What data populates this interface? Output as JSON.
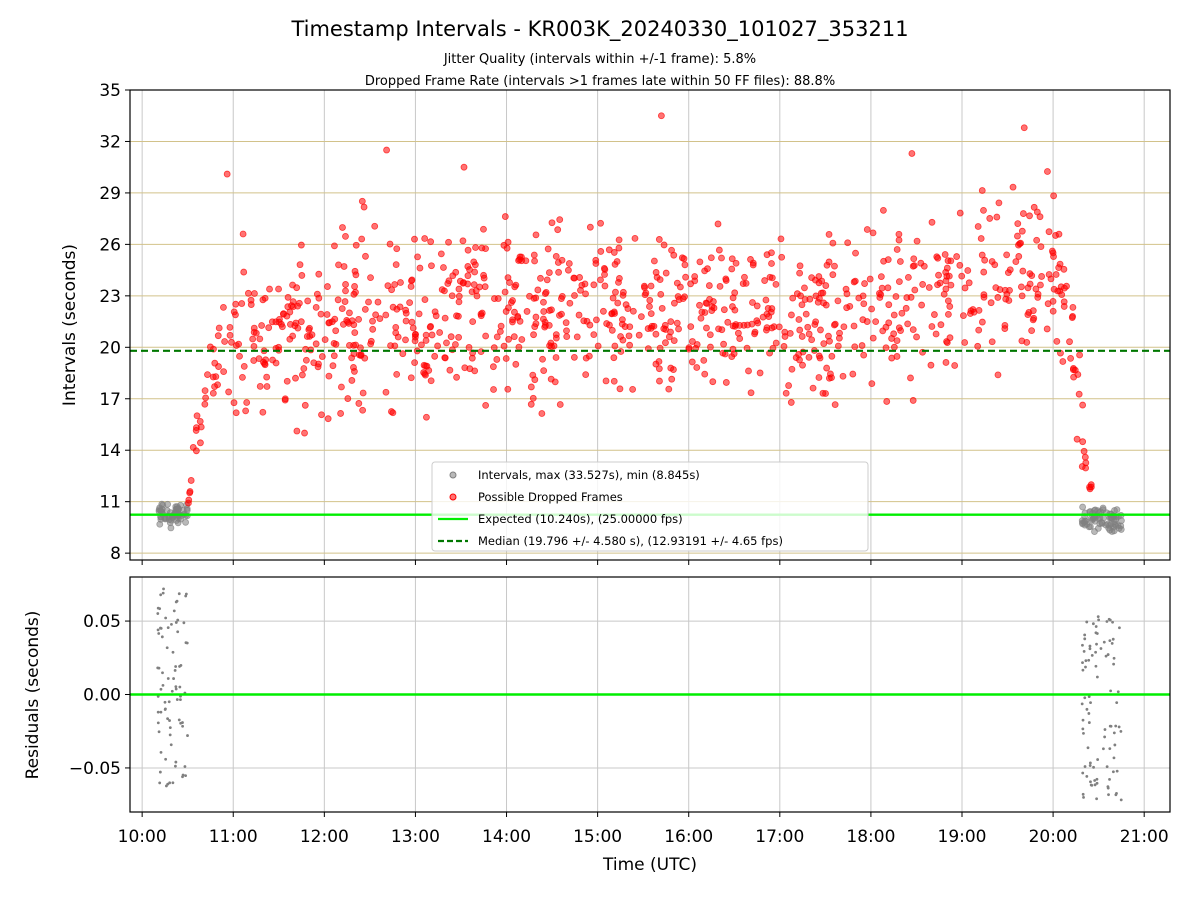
{
  "chart_data": [
    {
      "type": "scatter",
      "title": "Timestamp Intervals - KR003K_20240330_101027_353211",
      "subtitle_1": "Jitter Quality (intervals within +/-1 frame): 5.8%",
      "subtitle_2": "Dropped Frame Rate (intervals >1 frames late within 50 FF files): 88.8%",
      "ylabel": "Intervals (seconds)",
      "xlabel": "",
      "ylim": [
        7.6,
        35
      ],
      "xlim": [
        "09:52",
        "21:17"
      ],
      "y_ticks": [
        "8",
        "11",
        "14",
        "17",
        "20",
        "23",
        "26",
        "29",
        "32",
        "35"
      ],
      "grid": true,
      "legend_position": "lower center",
      "legend": [
        "Intervals, max (33.527s), min (8.845s)",
        "Possible Dropped Frames",
        "Expected (10.240s), (25.00000 fps)",
        "Median (19.796 +/- 4.580 s), (12.93191 +/- 4.65 fps)"
      ],
      "expected_interval": 10.24,
      "median_interval": 19.796,
      "max_interval": 33.527,
      "min_interval": 8.845,
      "colors": {
        "normal": "#808080",
        "dropped": "#ff0000",
        "expected": "#00ee00",
        "median": "#007700",
        "hgrid": "#d2c28a",
        "vgrid": "#c8c8c8"
      },
      "series": [
        {
          "name": "Intervals, max (33.527s), min (8.845s)",
          "groups": [
            {
              "x_start": "10:10",
              "x_end": "10:30",
              "y_min": 9.3,
              "y_max": 11.2,
              "count": 60
            },
            {
              "x_start": "20:19",
              "x_end": "20:45",
              "y_min": 8.845,
              "y_max": 10.9,
              "count": 70
            }
          ]
        },
        {
          "name": "Possible Dropped Frames",
          "envelope": [
            {
              "x": "10:30",
              "lo": 10.3,
              "hi": 11.5
            },
            {
              "x": "10:36",
              "lo": 12.5,
              "hi": 17.5
            },
            {
              "x": "10:44",
              "lo": 15.5,
              "hi": 21.5
            },
            {
              "x": "11:00",
              "lo": 14.0,
              "hi": 27.0
            },
            {
              "x": "12:00",
              "lo": 13.5,
              "hi": 29.5
            },
            {
              "x": "13:00",
              "lo": 14.5,
              "hi": 30.5
            },
            {
              "x": "14:00",
              "lo": 15.0,
              "hi": 30.0
            },
            {
              "x": "15:00",
              "lo": 15.5,
              "hi": 29.0
            },
            {
              "x": "16:00",
              "lo": 15.5,
              "hi": 28.5
            },
            {
              "x": "17:00",
              "lo": 14.5,
              "hi": 28.0
            },
            {
              "x": "18:00",
              "lo": 15.0,
              "hi": 29.5
            },
            {
              "x": "19:00",
              "lo": 16.0,
              "hi": 31.0
            },
            {
              "x": "20:00",
              "lo": 17.0,
              "hi": 32.0
            },
            {
              "x": "20:12",
              "lo": 15.0,
              "hi": 27.0
            },
            {
              "x": "20:20",
              "lo": 12.0,
              "hi": 17.0
            },
            {
              "x": "20:26",
              "lo": 10.3,
              "hi": 11.5
            }
          ],
          "outliers": [
            {
              "x": "15:42",
              "y": 33.5
            },
            {
              "x": "19:41",
              "y": 32.8
            },
            {
              "x": "12:41",
              "y": 31.5
            },
            {
              "x": "18:27",
              "y": 31.3
            },
            {
              "x": "13:32",
              "y": 30.5
            },
            {
              "x": "10:56",
              "y": 30.1
            }
          ],
          "count": 1000
        }
      ],
      "lines": [
        {
          "name": "Expected (10.240s), (25.00000 fps)",
          "y": 10.24,
          "style": "solid"
        },
        {
          "name": "Median (19.796 +/- 4.580 s), (12.93191 +/- 4.65 fps)",
          "y": 19.796,
          "style": "dashed"
        }
      ]
    },
    {
      "type": "scatter",
      "title": "",
      "ylabel": "Residuals (seconds)",
      "xlabel": "Time (UTC)",
      "ylim": [
        -0.08,
        0.08
      ],
      "xlim": [
        "09:52",
        "21:17"
      ],
      "y_ticks": [
        "−0.05",
        "0.00",
        "0.05"
      ],
      "x_ticks": [
        "10:00",
        "11:00",
        "12:00",
        "13:00",
        "14:00",
        "15:00",
        "16:00",
        "17:00",
        "18:00",
        "19:00",
        "20:00",
        "21:00"
      ],
      "grid": true,
      "series": [
        {
          "name": "",
          "groups": [
            {
              "x_start": "10:10",
              "x_end": "10:30",
              "y_min": -0.066,
              "y_max": 0.072,
              "count": 80
            },
            {
              "x_start": "20:19",
              "x_end": "20:45",
              "y_min": -0.074,
              "y_max": 0.054,
              "count": 90
            }
          ]
        }
      ],
      "lines": [
        {
          "name": "",
          "y": 0.0,
          "style": "solid"
        }
      ]
    }
  ]
}
